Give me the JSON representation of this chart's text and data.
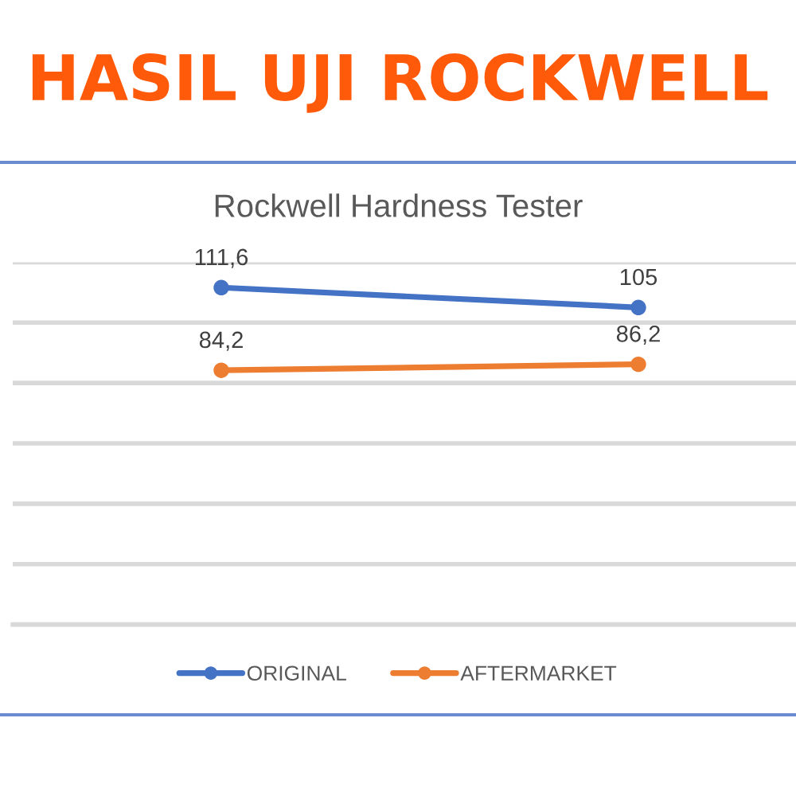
{
  "chart_data": {
    "type": "line",
    "title": "HASIL UJI ROCKWELL",
    "subtitle": "Rockwell Hardness Tester",
    "categories": [
      null,
      null
    ],
    "series": [
      {
        "name": "ORIGINAL",
        "color": "#4472c4",
        "values": [
          111.6,
          105
        ],
        "value_labels": [
          "111,6",
          "105"
        ]
      },
      {
        "name": "AFTERMARKET",
        "color": "#ed7d31",
        "values": [
          84.2,
          86.2
        ],
        "value_labels": [
          "84,2",
          "86,2"
        ]
      }
    ],
    "ylim": [
      0,
      120
    ],
    "yticks": [
      {
        "value": 0,
        "label": null
      },
      {
        "value": 20,
        "label": null
      },
      {
        "value": 40,
        "label": null
      },
      {
        "value": 60,
        "label": null
      },
      {
        "value": 80,
        "label": null
      },
      {
        "value": 100,
        "label": null
      },
      {
        "value": 120,
        "label": null
      }
    ],
    "grid": "y",
    "legend": "bottom",
    "marker": "circle",
    "line_style": "solid"
  }
}
